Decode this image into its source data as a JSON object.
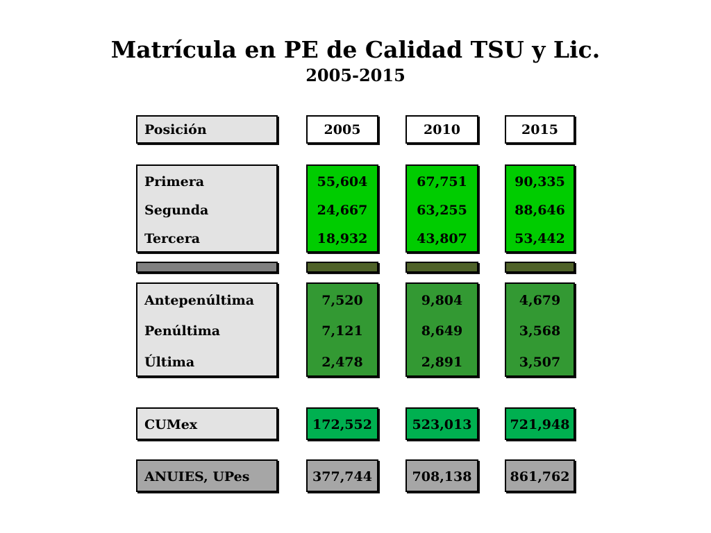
{
  "title": "Matrícula en PE de Calidad  TSU y Lic.",
  "subtitle": "2005-2015",
  "header": {
    "label": "Posición",
    "years": [
      "2005",
      "2010",
      "2015"
    ]
  },
  "colors": {
    "top_group_fill": "#00cc00",
    "separator_label_fill": "#808080",
    "separator_value_fill": "#4f6228",
    "bottom_group_fill": "#339933",
    "cumex_fill": "#00b050",
    "anuies_fill": "#a6a6a6",
    "label_fill": "#e3e3e3"
  },
  "chart_data": {
    "type": "table",
    "title": "Matrícula en PE de Calidad  TSU y Lic.",
    "subtitle": "2005-2015",
    "columns": [
      "Posición",
      "2005",
      "2010",
      "2015"
    ],
    "groups": {
      "top": [
        {
          "label": "Primera",
          "values": [
            "55,604",
            "67,751",
            "90,335"
          ]
        },
        {
          "label": "Segunda",
          "values": [
            "24,667",
            "63,255",
            "88,646"
          ]
        },
        {
          "label": "Tercera",
          "values": [
            "18,932",
            "43,807",
            "53,442"
          ]
        }
      ],
      "bottom": [
        {
          "label": "Antepenúltima",
          "values": [
            "7,520",
            "9,804",
            "4,679"
          ]
        },
        {
          "label": "Penúltima",
          "values": [
            "7,121",
            "8,649",
            "3,568"
          ]
        },
        {
          "label": "Última",
          "values": [
            "2,478",
            "2,891",
            "3,507"
          ]
        }
      ],
      "cumex": {
        "label": "CUMex",
        "values": [
          "172,552",
          "523,013",
          "721,948"
        ]
      },
      "anuies": {
        "label": "ANUIES, UPes",
        "values": [
          "377,744",
          "708,138",
          "861,762"
        ]
      }
    }
  }
}
